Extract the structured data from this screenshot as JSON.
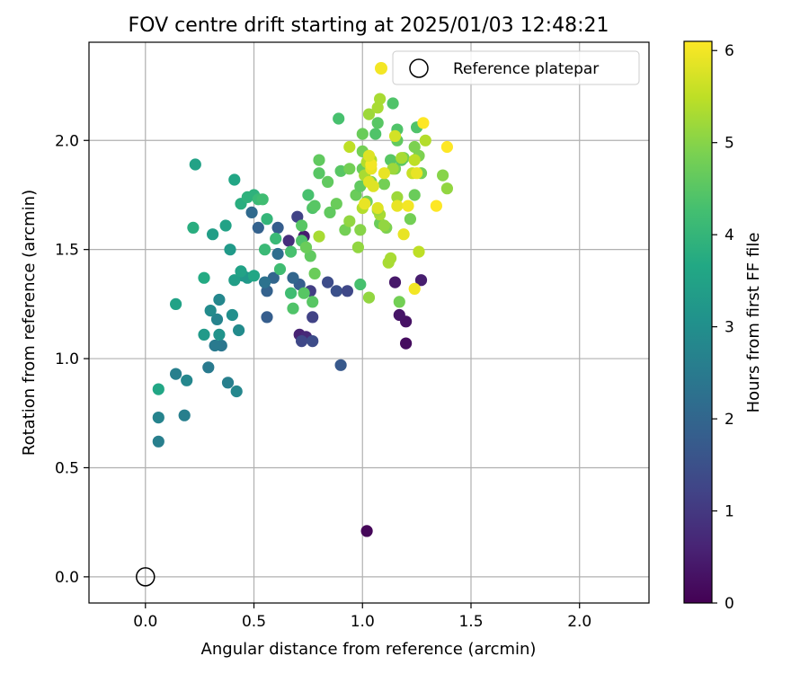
{
  "chart_data": {
    "type": "scatter",
    "title": "FOV centre drift starting at 2025/01/03 12:48:21",
    "xlabel": "Angular distance from reference (arcmin)",
    "ylabel": "Rotation from reference (arcmin)",
    "xlim": [
      -0.26,
      2.32
    ],
    "ylim": [
      -0.12,
      2.45
    ],
    "xticks": [
      0.0,
      0.5,
      1.0,
      1.5,
      2.0
    ],
    "xtick_labels": [
      "0.0",
      "0.5",
      "1.0",
      "1.5",
      "2.0"
    ],
    "yticks": [
      0.0,
      0.5,
      1.0,
      1.5,
      2.0
    ],
    "ytick_labels": [
      "0.0",
      "0.5",
      "1.0",
      "1.5",
      "2.0"
    ],
    "grid": true,
    "colormap": "viridis",
    "colorbar": {
      "label": "Hours from first FF file",
      "min": 0,
      "max": 6.1,
      "ticks": [
        0,
        1,
        2,
        3,
        4,
        5,
        6
      ],
      "tick_labels": [
        "0",
        "1",
        "2",
        "3",
        "4",
        "5",
        "6"
      ]
    },
    "legend": {
      "position": "top-right",
      "entries": [
        {
          "label": "Reference platepar",
          "marker": "open-circle"
        }
      ]
    },
    "reference_point": {
      "x": 0.0,
      "y": 0.0
    },
    "points": [
      [
        1.02,
        0.21,
        0.1
      ],
      [
        1.2,
        1.07,
        0.2
      ],
      [
        1.2,
        1.17,
        0.3
      ],
      [
        1.17,
        1.2,
        0.35
      ],
      [
        1.15,
        1.35,
        0.4
      ],
      [
        1.27,
        1.36,
        0.5
      ],
      [
        0.73,
        1.56,
        0.5
      ],
      [
        0.71,
        1.11,
        0.6
      ],
      [
        0.74,
        1.1,
        0.7
      ],
      [
        0.66,
        1.54,
        0.8
      ],
      [
        0.7,
        1.65,
        1.2
      ],
      [
        0.76,
        1.31,
        1.1
      ],
      [
        0.77,
        1.19,
        1.2
      ],
      [
        0.72,
        1.08,
        1.3
      ],
      [
        0.77,
        1.08,
        1.4
      ],
      [
        0.84,
        1.35,
        1.4
      ],
      [
        0.88,
        1.31,
        1.5
      ],
      [
        0.93,
        1.31,
        1.3
      ],
      [
        0.9,
        0.97,
        1.7
      ],
      [
        0.71,
        1.34,
        1.8
      ],
      [
        0.68,
        1.37,
        2.0
      ],
      [
        0.61,
        1.6,
        1.8
      ],
      [
        0.56,
        1.19,
        1.8
      ],
      [
        0.56,
        1.31,
        1.9
      ],
      [
        0.59,
        1.37,
        2.0
      ],
      [
        0.61,
        1.48,
        2.2
      ],
      [
        0.52,
        1.6,
        1.9
      ],
      [
        0.49,
        1.67,
        2.1
      ],
      [
        0.55,
        1.35,
        2.3
      ],
      [
        0.35,
        1.06,
        2.4
      ],
      [
        0.32,
        1.06,
        2.5
      ],
      [
        0.29,
        0.96,
        2.5
      ],
      [
        0.38,
        0.89,
        2.6
      ],
      [
        0.42,
        0.85,
        2.8
      ],
      [
        0.06,
        0.62,
        2.6
      ],
      [
        0.06,
        0.73,
        2.7
      ],
      [
        0.18,
        0.74,
        2.6
      ],
      [
        0.14,
        0.93,
        2.6
      ],
      [
        0.19,
        0.9,
        2.8
      ],
      [
        0.33,
        1.18,
        2.7
      ],
      [
        0.34,
        1.27,
        2.8
      ],
      [
        0.3,
        1.22,
        2.9
      ],
      [
        0.43,
        1.13,
        2.9
      ],
      [
        0.4,
        1.2,
        3.0
      ],
      [
        0.34,
        1.11,
        3.1
      ],
      [
        0.47,
        1.37,
        3.3
      ],
      [
        0.45,
        1.38,
        3.2
      ],
      [
        0.41,
        1.36,
        3.4
      ],
      [
        0.44,
        1.4,
        3.5
      ],
      [
        0.27,
        1.11,
        3.3
      ],
      [
        0.31,
        1.57,
        3.4
      ],
      [
        0.37,
        1.61,
        3.5
      ],
      [
        0.39,
        1.5,
        3.3
      ],
      [
        0.06,
        0.86,
        3.6
      ],
      [
        0.14,
        1.25,
        3.5
      ],
      [
        0.27,
        1.37,
        3.7
      ],
      [
        0.22,
        1.6,
        3.8
      ],
      [
        0.23,
        1.89,
        3.5
      ],
      [
        0.41,
        1.82,
        3.6
      ],
      [
        0.44,
        1.71,
        3.8
      ],
      [
        0.47,
        1.74,
        3.9
      ],
      [
        0.5,
        1.75,
        3.9
      ],
      [
        0.52,
        1.73,
        4.1
      ],
      [
        0.54,
        1.73,
        4.2
      ],
      [
        0.56,
        1.64,
        4.0
      ],
      [
        0.5,
        1.38,
        3.6
      ],
      [
        0.55,
        1.5,
        4.1
      ],
      [
        0.6,
        1.55,
        4.1
      ],
      [
        0.62,
        1.41,
        4.2
      ],
      [
        0.67,
        1.3,
        4.2
      ],
      [
        0.68,
        1.23,
        4.4
      ],
      [
        0.67,
        1.49,
        4.3
      ],
      [
        0.72,
        1.54,
        4.4
      ],
      [
        0.73,
        1.3,
        4.5
      ],
      [
        0.75,
        1.75,
        4.3
      ],
      [
        0.77,
        1.69,
        4.4
      ],
      [
        0.78,
        1.7,
        4.5
      ],
      [
        0.8,
        1.85,
        4.5
      ],
      [
        0.8,
        1.91,
        4.6
      ],
      [
        0.78,
        1.39,
        4.7
      ],
      [
        0.76,
        1.47,
        4.6
      ],
      [
        0.77,
        1.26,
        4.5
      ],
      [
        0.74,
        1.51,
        4.7
      ],
      [
        0.72,
        1.61,
        4.5
      ],
      [
        0.84,
        1.81,
        4.6
      ],
      [
        0.85,
        1.67,
        4.6
      ],
      [
        0.88,
        1.71,
        4.7
      ],
      [
        0.9,
        1.86,
        4.5
      ],
      [
        0.89,
        2.1,
        4.3
      ],
      [
        0.94,
        1.87,
        4.8
      ],
      [
        0.97,
        1.75,
        4.7
      ],
      [
        0.99,
        1.79,
        4.6
      ],
      [
        1.0,
        1.87,
        4.7
      ],
      [
        1.0,
        1.95,
        4.8
      ],
      [
        1.0,
        2.03,
        4.7
      ],
      [
        1.02,
        1.72,
        4.8
      ],
      [
        1.04,
        1.81,
        4.9
      ],
      [
        1.06,
        2.03,
        4.4
      ],
      [
        1.07,
        2.08,
        4.5
      ],
      [
        1.1,
        1.8,
        4.8
      ],
      [
        1.08,
        1.62,
        4.7
      ],
      [
        1.11,
        1.6,
        4.9
      ],
      [
        1.13,
        1.91,
        4.5
      ],
      [
        1.14,
        2.17,
        4.4
      ],
      [
        1.16,
        2.05,
        4.4
      ],
      [
        1.16,
        2.0,
        4.6
      ],
      [
        1.15,
        1.87,
        4.8
      ],
      [
        1.19,
        1.92,
        4.8
      ],
      [
        1.18,
        1.91,
        4.5
      ],
      [
        1.17,
        1.26,
        4.8
      ],
      [
        1.22,
        1.64,
        4.8
      ],
      [
        1.24,
        1.75,
        4.7
      ],
      [
        1.24,
        1.97,
        4.9
      ],
      [
        1.26,
        1.93,
        4.9
      ],
      [
        1.25,
        2.06,
        4.4
      ],
      [
        1.27,
        1.85,
        4.8
      ],
      [
        1.37,
        1.84,
        5.0
      ],
      [
        1.39,
        1.78,
        5.1
      ],
      [
        0.99,
        1.34,
        4.3
      ],
      [
        0.92,
        1.59,
        4.8
      ],
      [
        0.94,
        1.63,
        5.1
      ],
      [
        0.98,
        1.51,
        5.1
      ],
      [
        0.99,
        1.59,
        5.0
      ],
      [
        1.03,
        1.28,
        5.1
      ],
      [
        1.1,
        1.61,
        5.1
      ],
      [
        1.12,
        1.44,
        5.3
      ],
      [
        1.13,
        1.46,
        5.3
      ],
      [
        1.14,
        1.87,
        5.2
      ],
      [
        1.16,
        1.74,
        5.2
      ],
      [
        1.18,
        1.92,
        5.3
      ],
      [
        1.08,
        1.66,
        5.3
      ],
      [
        1.07,
        1.68,
        5.2
      ],
      [
        1.02,
        1.9,
        5.4
      ],
      [
        1.04,
        1.91,
        5.4
      ],
      [
        1.01,
        1.84,
        5.3
      ],
      [
        1.0,
        1.69,
        5.4
      ],
      [
        1.03,
        2.12,
        5.2
      ],
      [
        1.07,
        2.15,
        5.3
      ],
      [
        1.08,
        2.19,
        5.3
      ],
      [
        1.29,
        2.0,
        5.4
      ],
      [
        1.26,
        1.49,
        5.5
      ],
      [
        1.23,
        1.85,
        5.6
      ],
      [
        1.24,
        1.91,
        5.5
      ],
      [
        0.94,
        1.97,
        5.5
      ],
      [
        0.8,
        1.56,
        5.3
      ],
      [
        1.03,
        1.81,
        5.8
      ],
      [
        1.05,
        1.79,
        5.8
      ],
      [
        1.07,
        1.69,
        5.8
      ],
      [
        1.15,
        2.02,
        5.7
      ],
      [
        1.01,
        1.71,
        5.9
      ],
      [
        1.16,
        1.7,
        5.9
      ],
      [
        1.19,
        1.57,
        5.9
      ],
      [
        1.21,
        1.7,
        6.0
      ],
      [
        1.24,
        1.32,
        6.0
      ],
      [
        1.28,
        2.08,
        6.1
      ],
      [
        1.34,
        1.7,
        6.1
      ],
      [
        1.39,
        1.97,
        6.1
      ],
      [
        1.25,
        1.85,
        5.9
      ],
      [
        1.04,
        1.87,
        5.9
      ],
      [
        1.04,
        1.89,
        6.0
      ],
      [
        1.03,
        1.93,
        5.8
      ],
      [
        1.1,
        1.85,
        5.9
      ]
    ]
  }
}
